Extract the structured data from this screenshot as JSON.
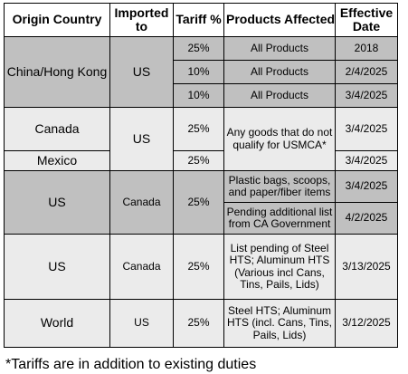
{
  "headers": {
    "origin": [
      "Origin Country"
    ],
    "imported": [
      "Imported",
      "to"
    ],
    "tariff": [
      "Tariff %"
    ],
    "products": [
      "Products Affected"
    ],
    "date": [
      "Effective",
      "Date"
    ]
  },
  "rows": [
    {
      "origin": "China/Hong Kong",
      "imported": "US",
      "lines": [
        {
          "tariff": "25%",
          "products": [
            "All Products"
          ],
          "date": "2018"
        },
        {
          "tariff": "10%",
          "products": [
            "All Products"
          ],
          "date": "2/4/2025"
        },
        {
          "tariff": "10%",
          "products": [
            "All Products"
          ],
          "date": "3/4/2025"
        }
      ]
    },
    {
      "origin": "Canada",
      "imported": "US",
      "tariff": "25%",
      "products": [
        "Any goods that do not",
        "qualify for USMCA*"
      ],
      "date": "3/4/2025"
    },
    {
      "origin": "Mexico",
      "tariff": "25%",
      "date": "3/4/2025"
    },
    {
      "origin": "US",
      "imported": "Canada",
      "tariff": "25%",
      "lines": [
        {
          "products": [
            "Plastic bags, scoops,",
            "and paper/fiber items"
          ],
          "date": "3/4/2025"
        },
        {
          "products": [
            "Pending additional list",
            "from CA Government"
          ],
          "date": "4/2/2025"
        }
      ]
    },
    {
      "origin": "US",
      "imported": "Canada",
      "tariff": "25%",
      "products": [
        "List pending of Steel",
        "HTS; Aluminum HTS",
        "(Various incl Cans,",
        "Tins, Pails, Lids)"
      ],
      "date": "3/13/2025"
    },
    {
      "origin": "World",
      "imported": "US",
      "tariff": "25%",
      "products": [
        "Steel HTS; Aluminum",
        "HTS (incl. Cans, Tins,",
        "Pails, Lids)"
      ],
      "date": "3/12/2025"
    }
  ],
  "footnote": "*Tariffs are in addition to existing duties",
  "colors": {
    "dark_fill": "#c0c0c0",
    "light_fill": "#ebebeb"
  }
}
